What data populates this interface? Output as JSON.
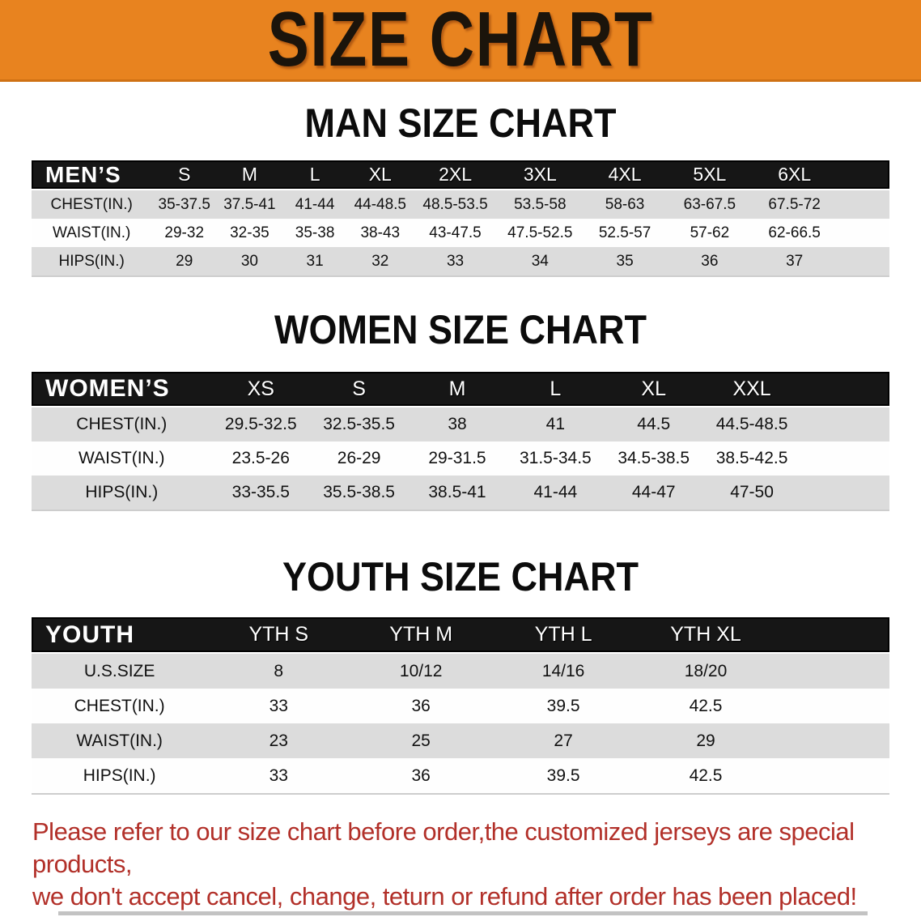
{
  "banner": {
    "title": "SIZE CHART"
  },
  "colors": {
    "banner_bg": "#E8831F",
    "banner_text": "#1b140b",
    "header_bar_bg": "#161616",
    "header_bar_text": "#ffffff",
    "shaded_row_bg": "#dcdcdc",
    "notice_text": "#b23029"
  },
  "tables": [
    {
      "title": "MAN SIZE CHART",
      "header_label": "MEN’S",
      "columns": [
        "S",
        "M",
        "L",
        "XL",
        "2XL",
        "3XL",
        "4XL",
        "5XL",
        "6XL"
      ],
      "rows": [
        {
          "label": "CHEST(IN.)",
          "values": [
            "35-37.5",
            "37.5-41",
            "41-44",
            "44-48.5",
            "48.5-53.5",
            "53.5-58",
            "58-63",
            "63-67.5",
            "67.5-72"
          ]
        },
        {
          "label": "WAIST(IN.)",
          "values": [
            "29-32",
            "32-35",
            "35-38",
            "38-43",
            "43-47.5",
            "47.5-52.5",
            "52.5-57",
            "57-62",
            "62-66.5"
          ]
        },
        {
          "label": "HIPS(IN.)",
          "values": [
            "29",
            "30",
            "31",
            "32",
            "33",
            "34",
            "35",
            "36",
            "37"
          ]
        }
      ],
      "row_shading": [
        "shaded",
        "plain",
        "shaded"
      ]
    },
    {
      "title": "WOMEN SIZE CHART",
      "header_label": "WOMEN’S",
      "columns": [
        "XS",
        "S",
        "M",
        "L",
        "XL",
        "XXL"
      ],
      "rows": [
        {
          "label": "CHEST(IN.)",
          "values": [
            "29.5-32.5",
            "32.5-35.5",
            "38",
            "41",
            "44.5",
            "44.5-48.5"
          ]
        },
        {
          "label": "WAIST(IN.)",
          "values": [
            "23.5-26",
            "26-29",
            "29-31.5",
            "31.5-34.5",
            "34.5-38.5",
            "38.5-42.5"
          ]
        },
        {
          "label": "HIPS(IN.)",
          "values": [
            "33-35.5",
            "35.5-38.5",
            "38.5-41",
            "41-44",
            "44-47",
            "47-50"
          ]
        }
      ],
      "row_shading": [
        "shaded",
        "plain",
        "shaded"
      ]
    },
    {
      "title": "YOUTH SIZE CHART",
      "header_label": "YOUTH",
      "columns": [
        "YTH S",
        "YTH M",
        "YTH L",
        "YTH XL"
      ],
      "rows": [
        {
          "label": "U.S.SIZE",
          "values": [
            "8",
            "10/12",
            "14/16",
            "18/20"
          ]
        },
        {
          "label": "CHEST(IN.)",
          "values": [
            "33",
            "36",
            "39.5",
            "42.5"
          ]
        },
        {
          "label": "WAIST(IN.)",
          "values": [
            "23",
            "25",
            "27",
            "29"
          ]
        },
        {
          "label": "HIPS(IN.)",
          "values": [
            "33",
            "36",
            "39.5",
            "42.5"
          ]
        }
      ],
      "row_shading": [
        "shaded",
        "plain",
        "shaded",
        "plain"
      ]
    }
  ],
  "footer": {
    "line1": "Please refer to our size chart before order,the customized jerseys are special products,",
    "line2": "we don't accept cancel, change, teturn or refund after order has been placed!"
  }
}
